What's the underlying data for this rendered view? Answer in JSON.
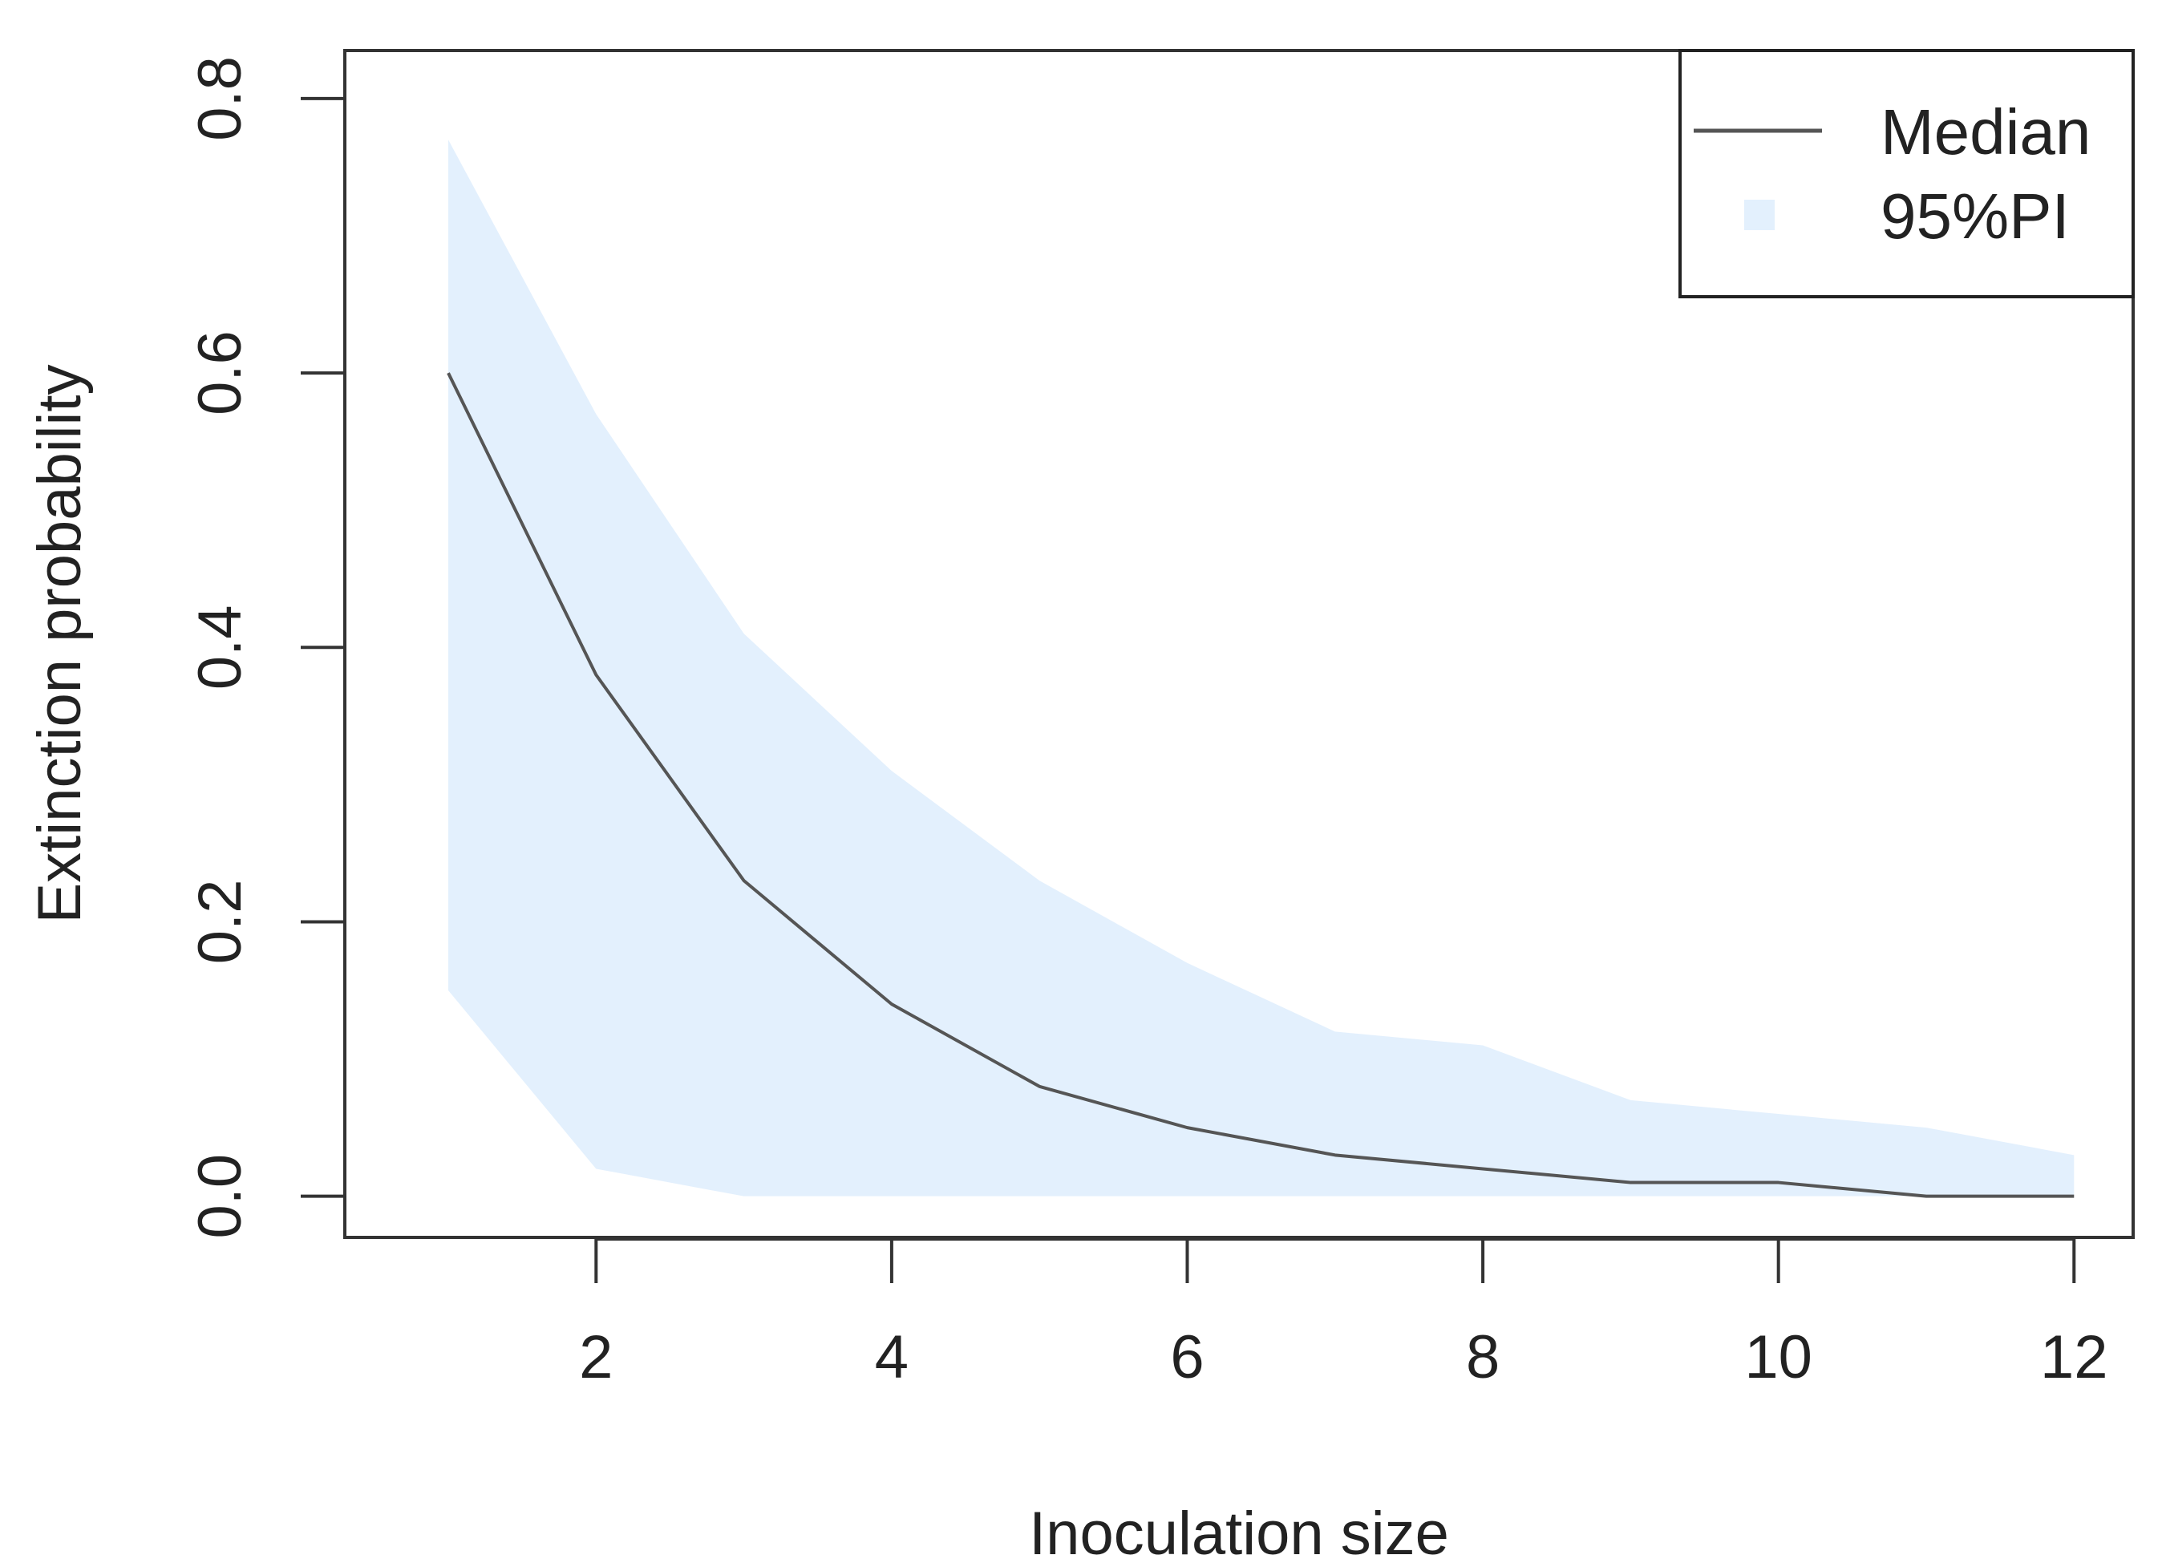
{
  "chart_data": {
    "type": "area",
    "title": "",
    "xlabel": "Inoculation size",
    "ylabel": "Extinction probability",
    "xlim": [
      0.3,
      12.4
    ],
    "ylim": [
      -0.03,
      0.835
    ],
    "x_ticks": [
      2,
      4,
      6,
      8,
      10,
      12
    ],
    "x_tick_labels": [
      "2",
      "4",
      "6",
      "8",
      "10",
      "12"
    ],
    "y_ticks": [
      0.0,
      0.2,
      0.4,
      0.6,
      0.8
    ],
    "y_tick_labels": [
      "0.0",
      "0.2",
      "0.4",
      "0.6",
      "0.8"
    ],
    "x": [
      1,
      2,
      3,
      4,
      5,
      6,
      7,
      8,
      9,
      10,
      11,
      12
    ],
    "series": [
      {
        "name": "Median",
        "kind": "line",
        "color": "#555555",
        "values": [
          0.6,
          0.38,
          0.23,
          0.14,
          0.08,
          0.05,
          0.03,
          0.02,
          0.01,
          0.01,
          0.0,
          0.0
        ]
      },
      {
        "name": "95%PI",
        "kind": "band",
        "color": "#e3f0fd",
        "lower": [
          0.15,
          0.02,
          0.0,
          0.0,
          0.0,
          0.0,
          0.0,
          0.0,
          0.0,
          0.0,
          0.0,
          0.0
        ],
        "upper": [
          0.77,
          0.57,
          0.41,
          0.31,
          0.23,
          0.17,
          0.12,
          0.11,
          0.07,
          0.06,
          0.05,
          0.03
        ]
      }
    ],
    "grid": false,
    "legend_position": "top-right",
    "legend": [
      {
        "label": "Median",
        "symbol": "line",
        "color": "#555555"
      },
      {
        "label": "95%PI",
        "symbol": "square",
        "color": "#e3f0fd"
      }
    ]
  }
}
